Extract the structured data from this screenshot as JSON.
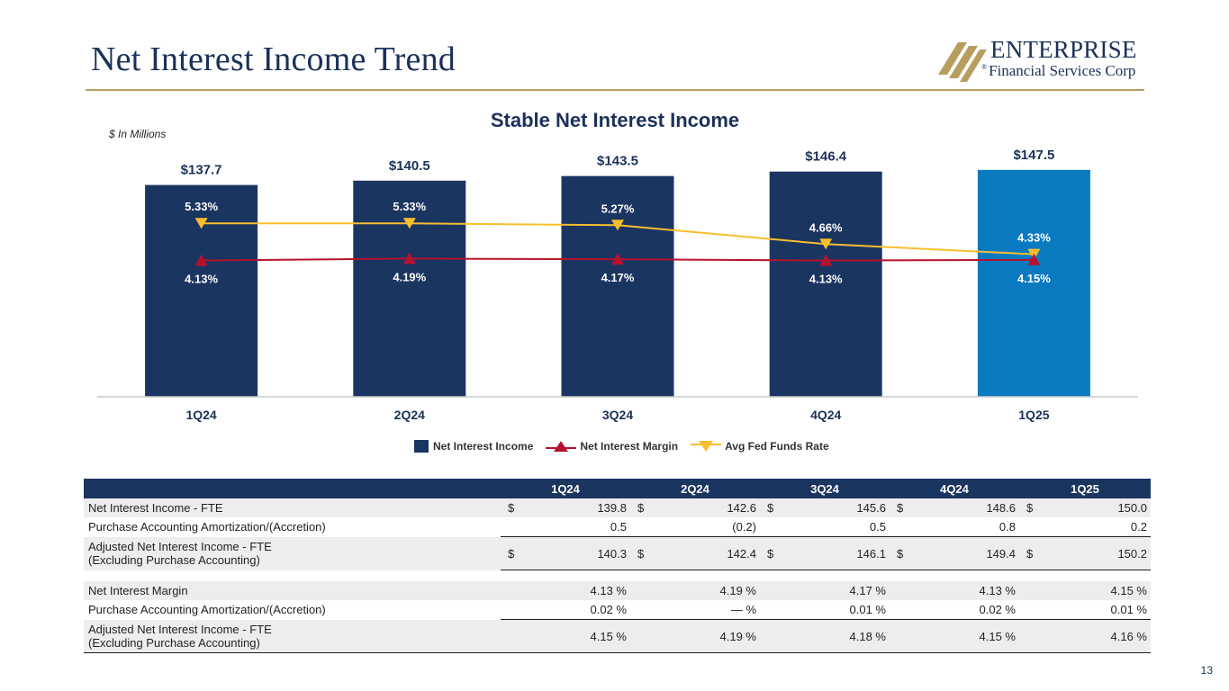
{
  "page": {
    "title": "Net Interest Income Trend",
    "page_number": "13"
  },
  "logo": {
    "name": "ENTERPRISE",
    "subtitle": "Financial Services Corp",
    "registered": "®"
  },
  "colors": {
    "navy": "#1b3561",
    "highlight_bar": "#0a7ac0",
    "margin_line": "#b5122d",
    "fed_line": "#f7be2e",
    "gold_rule": "#b79e5f"
  },
  "chart_data": {
    "type": "bar",
    "title": "Stable Net Interest Income",
    "units_note": "$ In Millions",
    "categories": [
      "1Q24",
      "2Q24",
      "3Q24",
      "4Q24",
      "1Q25"
    ],
    "ylim": [
      0,
      155
    ],
    "series": [
      {
        "name": "Net Interest Income",
        "kind": "bar",
        "values": [
          137.7,
          140.5,
          143.5,
          146.4,
          147.5
        ],
        "labels": [
          "$137.7",
          "$140.5",
          "$143.5",
          "$146.4",
          "$147.5"
        ]
      },
      {
        "name": "Net Interest Margin",
        "kind": "line",
        "marker": "triangle-up",
        "values": [
          4.13,
          4.19,
          4.17,
          4.13,
          4.15
        ],
        "labels": [
          "4.13%",
          "4.19%",
          "4.17%",
          "4.13%",
          "4.15%"
        ]
      },
      {
        "name": "Avg Fed Funds Rate",
        "kind": "line",
        "marker": "triangle-down",
        "values": [
          5.33,
          5.33,
          5.27,
          4.66,
          4.33
        ],
        "labels": [
          "5.33%",
          "5.33%",
          "5.27%",
          "4.66%",
          "4.33%"
        ]
      }
    ],
    "legend": [
      "Net Interest Income",
      "Net Interest Margin",
      "Avg Fed Funds Rate"
    ]
  },
  "table": {
    "headers": [
      "1Q24",
      "2Q24",
      "3Q24",
      "4Q24",
      "1Q25"
    ],
    "rows": [
      {
        "label": "Net Interest Income - FTE",
        "currency": true,
        "values": [
          "139.8",
          "142.6",
          "145.6",
          "148.6",
          "150.0"
        ]
      },
      {
        "label": "Purchase Accounting Amortization/(Accretion)",
        "currency": false,
        "values": [
          "0.5",
          "(0.2)",
          "0.5",
          "0.8",
          "0.2"
        ]
      },
      {
        "label": "Adjusted Net Interest Income - FTE",
        "label2": "(Excluding Purchase Accounting)",
        "currency": true,
        "values": [
          "140.3",
          "142.4",
          "146.1",
          "149.4",
          "150.2"
        ]
      },
      {
        "label": "Net Interest Margin",
        "currency": false,
        "values": [
          "4.13 %",
          "4.19 %",
          "4.17 %",
          "4.13 %",
          "4.15 %"
        ]
      },
      {
        "label": "Purchase Accounting Amortization/(Accretion)",
        "currency": false,
        "values": [
          "0.02 %",
          "— %",
          "0.01 %",
          "0.02 %",
          "0.01 %"
        ]
      },
      {
        "label": "Adjusted Net Interest Income - FTE",
        "label2": "(Excluding Purchase Accounting)",
        "currency": false,
        "values": [
          "4.15 %",
          "4.19 %",
          "4.18 %",
          "4.15 %",
          "4.16 %"
        ]
      }
    ],
    "currency_symbol": "$"
  }
}
